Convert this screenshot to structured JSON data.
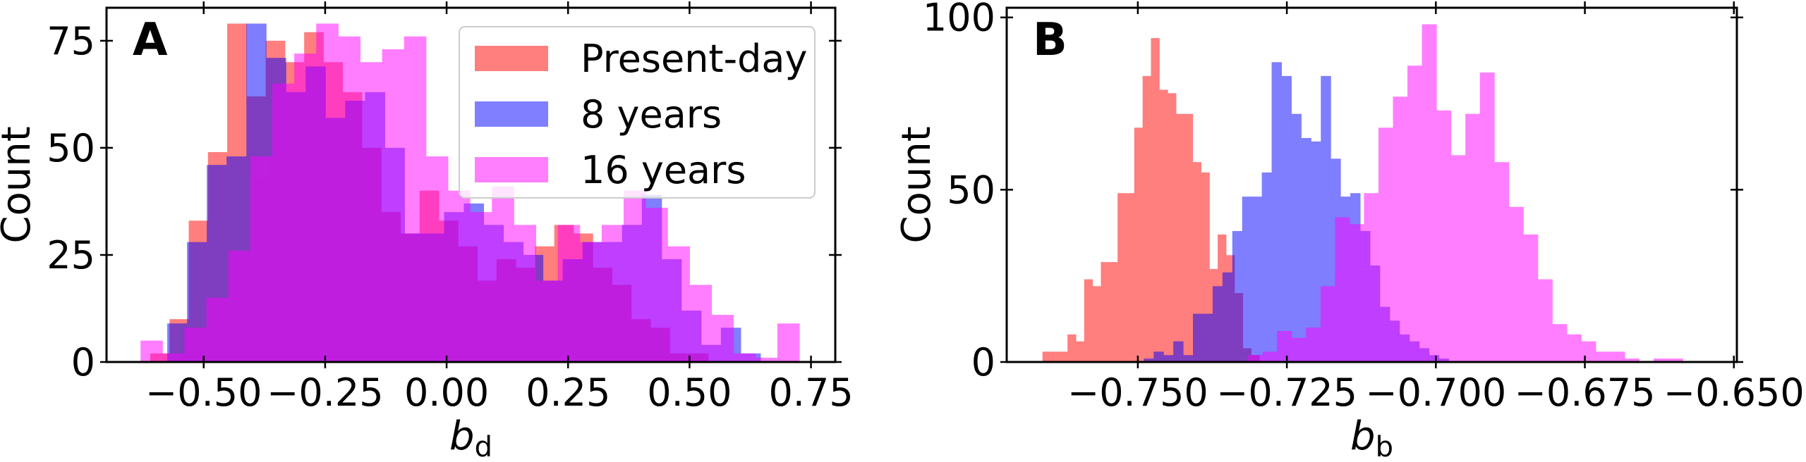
{
  "chart_data": [
    {
      "type": "bar",
      "panel_label": "A",
      "xlabel": "b",
      "xlabel_sub": "d",
      "ylabel": "Count",
      "xlim": [
        -0.7,
        0.8
      ],
      "ylim": [
        0,
        82.7
      ],
      "xticks": [
        -0.5,
        -0.25,
        0.0,
        0.25,
        0.5,
        0.75
      ],
      "xtick_labels": [
        "−0.50",
        "−0.25",
        "0.00",
        "0.25",
        "0.50",
        "0.75"
      ],
      "yticks": [
        0,
        25,
        50,
        75
      ],
      "ytick_labels": [
        "0",
        "25",
        "50",
        "75"
      ],
      "grid": false,
      "legend_position": "top-right",
      "series": [
        {
          "name": "Present-day",
          "color": "#ff0000",
          "alpha": 0.5,
          "bin_start": -0.61,
          "bin_width": 0.0396,
          "counts": [
            2,
            10,
            33,
            49,
            79,
            62,
            75,
            70,
            77,
            70,
            63,
            50,
            35,
            30,
            40,
            33,
            27,
            19,
            24,
            22,
            27,
            32,
            30,
            22,
            18,
            10,
            8,
            2,
            2,
            0
          ]
        },
        {
          "name": "8 years",
          "color": "#0000ff",
          "alpha": 0.5,
          "bin_start": -0.575,
          "bin_width": 0.0407,
          "counts": [
            9,
            28,
            46,
            48,
            79,
            71,
            63,
            69,
            57,
            61,
            63,
            50,
            30,
            30,
            35,
            37,
            32,
            28,
            25,
            19,
            24,
            28,
            28,
            32,
            39,
            24,
            12,
            4,
            8,
            2
          ]
        },
        {
          "name": "16 years",
          "color": "#ff00ff",
          "alpha": 0.5,
          "bin_start": -0.63,
          "bin_width": 0.0452,
          "counts": [
            5,
            2,
            8,
            15,
            26,
            48,
            65,
            72,
            79,
            76,
            70,
            73,
            76,
            48,
            40,
            35,
            41,
            32,
            19,
            32,
            28,
            32,
            40,
            36,
            27,
            18,
            11,
            2,
            1,
            9
          ]
        }
      ]
    },
    {
      "type": "bar",
      "panel_label": "B",
      "xlabel": "b",
      "xlabel_sub": "b",
      "ylabel": "Count",
      "xlim": [
        -0.772,
        -0.6495
      ],
      "ylim": [
        0,
        102.8
      ],
      "xticks": [
        -0.75,
        -0.725,
        -0.7,
        -0.675,
        -0.65
      ],
      "xtick_labels": [
        "−0.750",
        "−0.725",
        "−0.700",
        "−0.675",
        "−0.650"
      ],
      "yticks": [
        0,
        50,
        100
      ],
      "ytick_labels": [
        "0",
        "50",
        "100"
      ],
      "grid": false,
      "series": [
        {
          "name": "Present-day",
          "color": "#ff0000",
          "alpha": 0.5,
          "bin_start": -0.766,
          "bin_width": 0.0014,
          "counts": [
            3,
            3,
            3,
            8,
            6,
            24,
            22,
            29,
            29,
            49,
            49,
            68,
            83,
            94,
            79,
            78,
            72,
            72,
            58,
            55,
            27,
            37,
            31,
            20,
            4,
            2
          ]
        },
        {
          "name": "8 years",
          "color": "#0000ff",
          "alpha": 0.5,
          "bin_start": -0.749,
          "bin_width": 0.00165,
          "counts": [
            1,
            3,
            2,
            6,
            2,
            14,
            14,
            22,
            26,
            38,
            48,
            48,
            55,
            87,
            83,
            72,
            65,
            64,
            83,
            59,
            48,
            49,
            38,
            28,
            16,
            12,
            8,
            6,
            4,
            2,
            1
          ]
        },
        {
          "name": "16 years",
          "color": "#ff00ff",
          "alpha": 0.5,
          "bin_start": -0.7315,
          "bin_width": 0.00243,
          "counts": [
            2,
            3,
            9,
            7,
            10,
            22,
            42,
            40,
            49,
            68,
            77,
            86,
            98,
            73,
            60,
            72,
            84,
            58,
            45,
            37,
            24,
            11,
            8,
            6,
            3,
            3,
            1,
            0,
            1,
            1
          ]
        }
      ]
    }
  ]
}
